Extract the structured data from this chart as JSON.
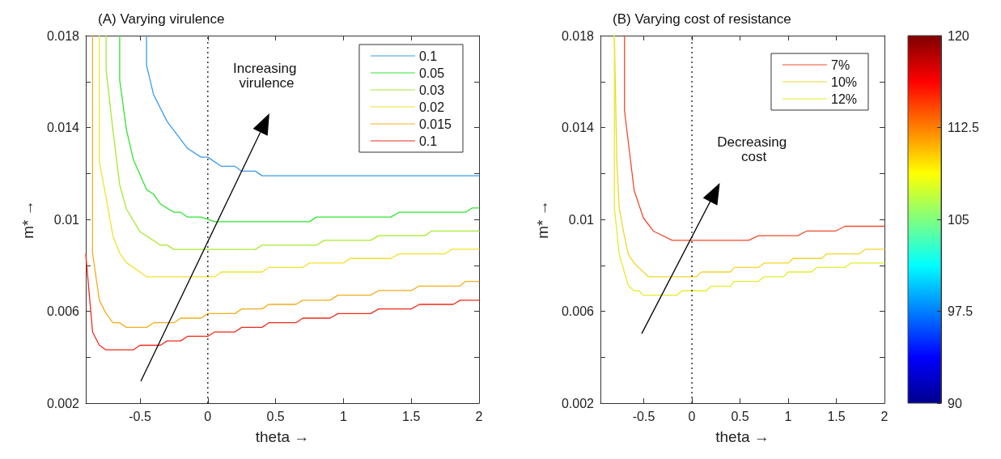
{
  "chart_data": [
    {
      "type": "line",
      "title": "(A) Varying virulence",
      "xlabel": "theta →",
      "ylabel": "m* →",
      "xlim": [
        -0.9,
        2
      ],
      "ylim": [
        0.002,
        0.018
      ],
      "xticks": [
        -0.5,
        0,
        0.5,
        1,
        1.5,
        2
      ],
      "yticks": [
        0.002,
        {
          "value": 0.004,
          "label": null
        },
        0.006,
        {
          "value": 0.008,
          "label": null
        },
        0.01,
        {
          "value": 0.012,
          "label": null
        },
        0.014,
        {
          "value": 0.016,
          "label": null
        },
        0.018
      ],
      "grid": false,
      "legend": "top right",
      "line_style": "solid",
      "ref_lines": [
        {
          "axis": "x",
          "value": 0,
          "color": "#000000",
          "line_style": "dotted"
        }
      ],
      "annotations": [
        "Increasing virulence"
      ],
      "series": [
        {
          "name": "0.1",
          "color": "#3d9be9",
          "x": [
            -0.452,
            -0.452,
            -0.4,
            -0.3,
            -0.15,
            -0.05,
            0,
            0.1,
            0.2,
            0.25,
            0.35,
            0.4,
            2
          ],
          "values": [
            0.018,
            0.01671,
            0.01543,
            0.01426,
            0.01309,
            0.01271,
            0.01271,
            0.01231,
            0.01231,
            0.0121,
            0.0121,
            0.0119,
            0.0119
          ]
        },
        {
          "name": "0.05",
          "color": "#2ee62e",
          "x": [
            -0.65,
            -0.65,
            -0.6,
            -0.55,
            -0.45,
            -0.4,
            -0.35,
            -0.25,
            -0.2,
            -0.15,
            -0.05,
            0.05,
            0.75,
            0.8,
            1.35,
            1.41,
            1.9,
            1.95,
            2
          ],
          "values": [
            0.018,
            0.01607,
            0.0139,
            0.01262,
            0.01128,
            0.0111,
            0.01067,
            0.01031,
            0.01031,
            0.0101,
            0.0101,
            0.0099,
            0.0099,
            0.0101,
            0.0101,
            0.01031,
            0.01031,
            0.0105,
            0.0105
          ]
        },
        {
          "name": "0.03",
          "color": "#a6ea2e",
          "x": [
            -0.75,
            -0.75,
            -0.7,
            -0.65,
            -0.6,
            -0.5,
            -0.35,
            -0.3,
            -0.25,
            0.35,
            0.4,
            0.8,
            0.86,
            1.2,
            1.26,
            1.6,
            1.65,
            2
          ],
          "values": [
            0.018,
            0.0165,
            0.0139,
            0.0115,
            0.01045,
            0.00946,
            0.00888,
            0.00888,
            0.00869,
            0.00869,
            0.00888,
            0.00888,
            0.00909,
            0.00909,
            0.00929,
            0.00929,
            0.00949,
            0.00949
          ]
        },
        {
          "name": "0.02",
          "color": "#f2e22a",
          "x": [
            -0.8,
            -0.8,
            -0.75,
            -0.7,
            -0.65,
            -0.6,
            -0.45,
            0.05,
            0.1,
            0.4,
            0.45,
            0.7,
            0.75,
            1,
            1.05,
            1.35,
            1.41,
            1.75,
            1.8,
            2
          ],
          "values": [
            0.018,
            0.0125,
            0.01095,
            0.00929,
            0.00853,
            0.00812,
            0.0075,
            0.0075,
            0.00771,
            0.00771,
            0.00791,
            0.00791,
            0.0081,
            0.0081,
            0.0083,
            0.0083,
            0.0085,
            0.0085,
            0.0087,
            0.0087
          ]
        },
        {
          "name": "0.015",
          "color": "#f2ad1a",
          "x": [
            -0.85,
            -0.85,
            -0.8,
            -0.75,
            -0.7,
            -0.65,
            -0.6,
            -0.45,
            -0.4,
            -0.25,
            -0.2,
            -0.05,
            0,
            0.2,
            0.25,
            0.4,
            0.45,
            0.65,
            0.7,
            0.9,
            0.96,
            1.2,
            1.26,
            1.5,
            1.56,
            1.86,
            1.9,
            2
          ],
          "values": [
            0.018,
            0.00853,
            0.00648,
            0.0059,
            0.0055,
            0.0055,
            0.0053,
            0.0053,
            0.0055,
            0.0055,
            0.0057,
            0.0057,
            0.0059,
            0.0059,
            0.0061,
            0.0061,
            0.0063,
            0.0063,
            0.00648,
            0.00648,
            0.0067,
            0.0067,
            0.0069,
            0.0069,
            0.0071,
            0.0071,
            0.0073,
            0.0073
          ]
        },
        {
          "name": "0.1",
          "color": "#f02a1a",
          "x": [
            -0.9,
            -0.85,
            -0.8,
            -0.75,
            -0.55,
            -0.5,
            -0.35,
            -0.3,
            -0.2,
            -0.15,
            0,
            0.05,
            0.2,
            0.25,
            0.4,
            0.45,
            0.65,
            0.7,
            0.9,
            0.96,
            1.2,
            1.26,
            1.5,
            1.56,
            1.81,
            1.86,
            2
          ],
          "values": [
            0.00848,
            0.0051,
            0.00452,
            0.00432,
            0.00432,
            0.00452,
            0.00452,
            0.00471,
            0.00471,
            0.00491,
            0.00491,
            0.0051,
            0.0051,
            0.0053,
            0.0053,
            0.0055,
            0.0055,
            0.0057,
            0.0057,
            0.0059,
            0.0059,
            0.0061,
            0.0061,
            0.0063,
            0.0063,
            0.00648,
            0.00648
          ]
        }
      ]
    },
    {
      "type": "line",
      "title": "(B) Varying cost of resistance",
      "xlabel": "theta →",
      "ylabel": "m* →",
      "xlim": [
        -0.95,
        2
      ],
      "ylim": [
        0.002,
        0.018
      ],
      "xticks": [
        -0.5,
        0,
        0.5,
        1,
        1.5,
        2
      ],
      "yticks": [
        0.002,
        {
          "value": 0.004,
          "label": null
        },
        0.006,
        {
          "value": 0.008,
          "label": null
        },
        0.01,
        {
          "value": 0.012,
          "label": null
        },
        0.014,
        {
          "value": 0.016,
          "label": null
        },
        0.018
      ],
      "grid": false,
      "legend": "top right",
      "line_style": "solid",
      "clim": [
        90,
        120
      ],
      "cticks": [
        90,
        97.5,
        105,
        112.5,
        120
      ],
      "ref_lines": [
        {
          "axis": "x",
          "value": 0,
          "color": "#000000",
          "line_style": "dotted"
        }
      ],
      "annotations": [
        "Decreasing cost"
      ],
      "series": [
        {
          "name": "7%",
          "color": "#f04a2a",
          "x": [
            -0.7,
            -0.7,
            -0.6,
            -0.505,
            -0.4,
            -0.205,
            0.59,
            0.69,
            1.1,
            1.19,
            1.49,
            1.59,
            2
          ],
          "values": [
            0.018,
            0.01473,
            0.01127,
            0.01007,
            0.00949,
            0.00909,
            0.00909,
            0.00929,
            0.00929,
            0.00949,
            0.00949,
            0.0097,
            0.0097
          ]
        },
        {
          "name": "10%",
          "color": "#f2d52a",
          "x": [
            -0.805,
            -0.78,
            -0.755,
            -0.705,
            -0.66,
            -0.6,
            -0.45,
            0.045,
            0.1,
            0.4,
            0.44,
            0.69,
            0.75,
            1,
            1.05,
            1.35,
            1.4,
            1.74,
            1.8,
            2
          ],
          "values": [
            0.018,
            0.0125,
            0.0105,
            0.00935,
            0.00847,
            0.0081,
            0.0075,
            0.0075,
            0.00771,
            0.00771,
            0.00791,
            0.00791,
            0.0081,
            0.0081,
            0.0083,
            0.0083,
            0.0085,
            0.0085,
            0.0087,
            0.0087
          ]
        },
        {
          "name": "12%",
          "color": "#e2ee2a",
          "x": [
            -0.805,
            -0.805,
            -0.755,
            -0.66,
            -0.6,
            -0.55,
            -0.505,
            -0.16,
            -0.1,
            0.15,
            0.2,
            0.4,
            0.44,
            0.69,
            0.75,
            0.95,
            1,
            1.24,
            1.3,
            1.59,
            1.65,
            2
          ],
          "values": [
            0.018,
            0.0105,
            0.00847,
            0.00712,
            0.00689,
            0.00689,
            0.0067,
            0.0067,
            0.00689,
            0.00689,
            0.00709,
            0.00709,
            0.0073,
            0.0073,
            0.0075,
            0.0075,
            0.00771,
            0.00771,
            0.00791,
            0.00791,
            0.0081,
            0.0081
          ]
        }
      ]
    }
  ]
}
